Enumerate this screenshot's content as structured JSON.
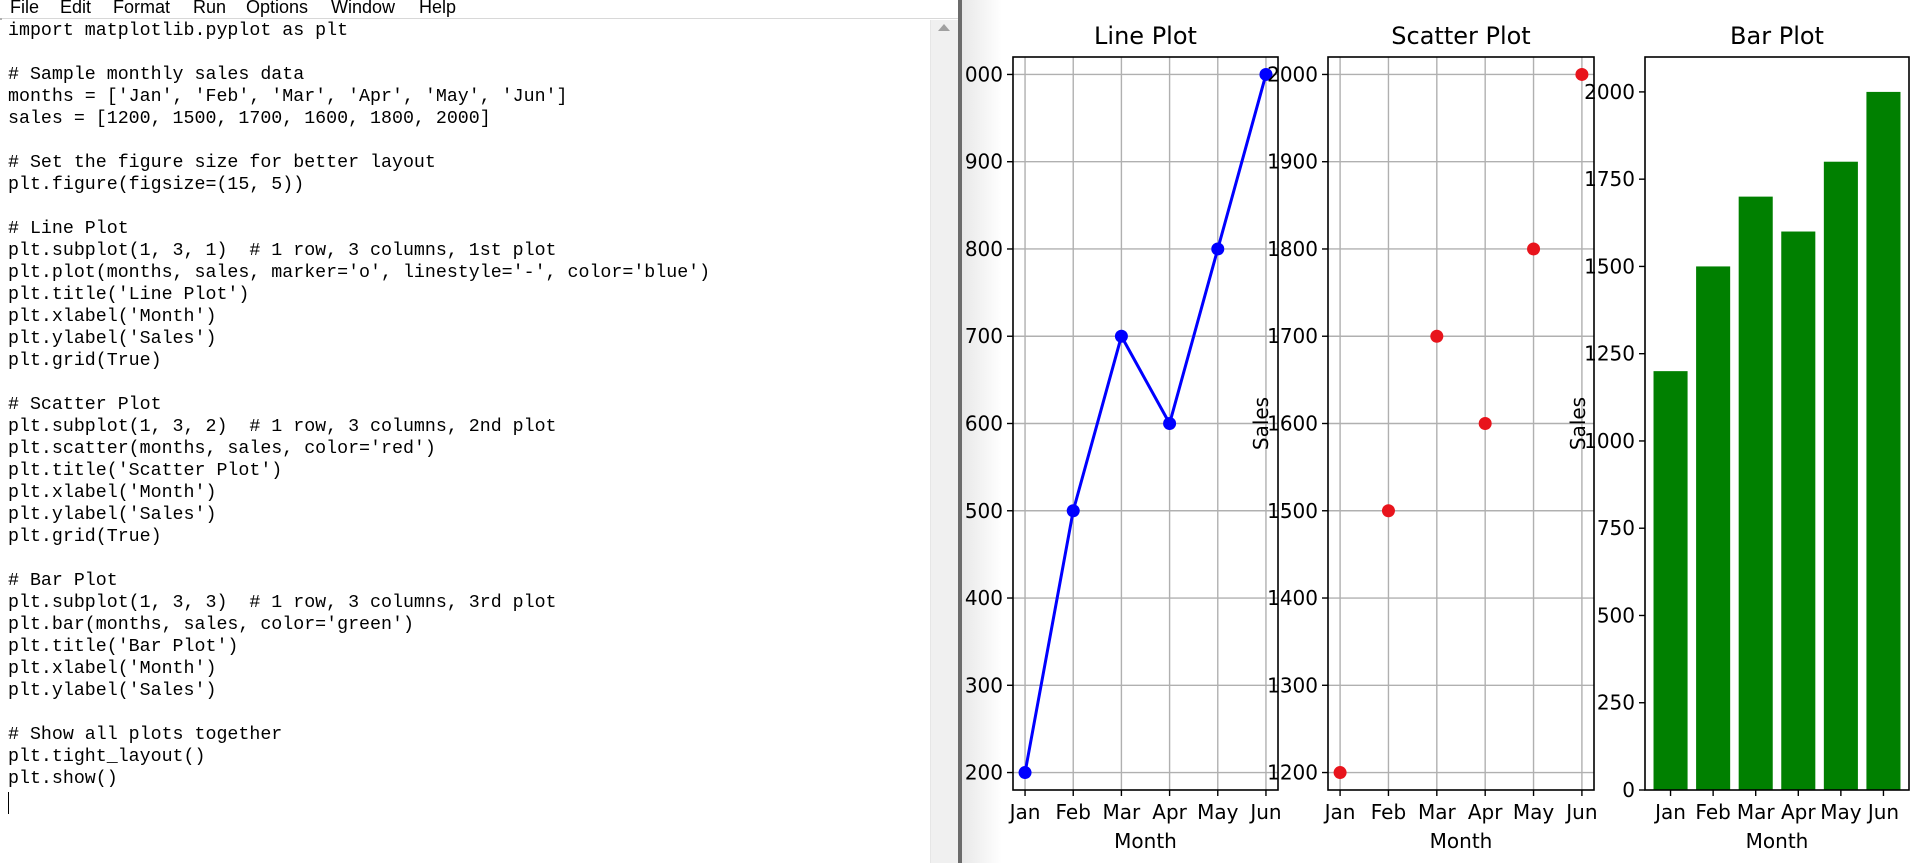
{
  "menu": [
    "File",
    "Edit",
    "Format",
    "Run",
    "Options",
    "Window",
    "Help"
  ],
  "code_lines": [
    "import matplotlib.pyplot as plt",
    "",
    "# Sample monthly sales data",
    "months = ['Jan', 'Feb', 'Mar', 'Apr', 'May', 'Jun']",
    "sales = [1200, 1500, 1700, 1600, 1800, 2000]",
    "",
    "# Set the figure size for better layout",
    "plt.figure(figsize=(15, 5))",
    "",
    "# Line Plot",
    "plt.subplot(1, 3, 1)  # 1 row, 3 columns, 1st plot",
    "plt.plot(months, sales, marker='o', linestyle='-', color='blue')",
    "plt.title('Line Plot')",
    "plt.xlabel('Month')",
    "plt.ylabel('Sales')",
    "plt.grid(True)",
    "",
    "# Scatter Plot",
    "plt.subplot(1, 3, 2)  # 1 row, 3 columns, 2nd plot",
    "plt.scatter(months, sales, color='red')",
    "plt.title('Scatter Plot')",
    "plt.xlabel('Month')",
    "plt.ylabel('Sales')",
    "plt.grid(True)",
    "",
    "# Bar Plot",
    "plt.subplot(1, 3, 3)  # 1 row, 3 columns, 3rd plot",
    "plt.bar(months, sales, color='green')",
    "plt.title('Bar Plot')",
    "plt.xlabel('Month')",
    "plt.ylabel('Sales')",
    "",
    "# Show all plots together",
    "plt.tight_layout()",
    "plt.show()"
  ],
  "icons": {
    "scroll_up": "triangle-up-icon"
  },
  "colors": {
    "line": "#0000ff",
    "scatter": "#e8141c",
    "bar": "#008000",
    "grid": "#b0b0b0"
  },
  "chart_data": [
    {
      "type": "line",
      "title": "Line Plot",
      "xlabel": "Month",
      "ylabel": "",
      "categories": [
        "Jan",
        "Feb",
        "Mar",
        "Apr",
        "May",
        "Jun"
      ],
      "values": [
        1200,
        1500,
        1700,
        1600,
        1800,
        2000
      ],
      "ylim": [
        1180,
        2020
      ],
      "yticks": [
        "200",
        "300",
        "400",
        "500",
        "600",
        "700",
        "800",
        "900",
        "000"
      ],
      "grid": true
    },
    {
      "type": "scatter",
      "title": "Scatter Plot",
      "xlabel": "Month",
      "ylabel": "Sales",
      "categories": [
        "Jan",
        "Feb",
        "Mar",
        "Apr",
        "May",
        "Jun"
      ],
      "values": [
        1200,
        1500,
        1700,
        1600,
        1800,
        2000
      ],
      "ylim": [
        1180,
        2020
      ],
      "yticks": [
        "1200",
        "1300",
        "1400",
        "1500",
        "1600",
        "1700",
        "1800",
        "1900",
        "2000"
      ],
      "grid": true
    },
    {
      "type": "bar",
      "title": "Bar Plot",
      "xlabel": "Month",
      "ylabel": "Sales",
      "categories": [
        "Jan",
        "Feb",
        "Mar",
        "Apr",
        "May",
        "Jun"
      ],
      "values": [
        1200,
        1500,
        1700,
        1600,
        1800,
        2000
      ],
      "ylim": [
        0,
        2100
      ],
      "yticks": [
        "0",
        "250",
        "500",
        "750",
        "1000",
        "1250",
        "1500",
        "1750",
        "2000"
      ],
      "grid": false
    }
  ]
}
